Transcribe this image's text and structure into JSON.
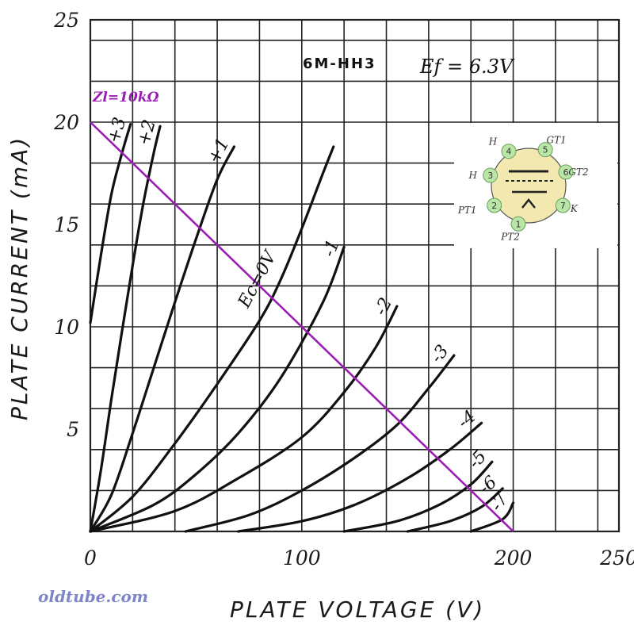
{
  "chart_data": {
    "type": "line",
    "title": "6M-HH3",
    "subtitle": "Ef = 6.3V",
    "xlabel": "PLATE VOLTAGE (V)",
    "ylabel": "PLATE CURRENT (mA)",
    "xlim": [
      0,
      250
    ],
    "ylim": [
      0,
      25
    ],
    "x_ticks": [
      "0",
      "100",
      "200",
      "250"
    ],
    "y_ticks": [
      "5",
      "10",
      "15",
      "20",
      "25"
    ],
    "grid": true,
    "series": [
      {
        "name": "+3",
        "points": [
          [
            0,
            10.2
          ],
          [
            5,
            13.5
          ],
          [
            10,
            16.5
          ],
          [
            15,
            18.5
          ],
          [
            19,
            19.9
          ]
        ]
      },
      {
        "name": "+2",
        "points": [
          [
            0,
            0
          ],
          [
            5,
            3.0
          ],
          [
            10,
            6.5
          ],
          [
            15,
            9.8
          ],
          [
            20,
            13.0
          ],
          [
            25,
            16.0
          ],
          [
            30,
            18.5
          ],
          [
            33,
            19.8
          ]
        ]
      },
      {
        "name": "+1",
        "points": [
          [
            0,
            0
          ],
          [
            10,
            1.8
          ],
          [
            20,
            4.8
          ],
          [
            30,
            8.0
          ],
          [
            40,
            11.2
          ],
          [
            50,
            14.3
          ],
          [
            60,
            17.2
          ],
          [
            68,
            18.8
          ]
        ]
      },
      {
        "name": "Ec=0V",
        "points": [
          [
            0,
            0
          ],
          [
            20,
            1.7
          ],
          [
            40,
            4.3
          ],
          [
            60,
            7.2
          ],
          [
            80,
            10.3
          ],
          [
            90,
            12.3
          ],
          [
            100,
            14.8
          ],
          [
            110,
            17.5
          ],
          [
            115,
            18.8
          ]
        ]
      },
      {
        "name": "-1",
        "points": [
          [
            0,
            0
          ],
          [
            30,
            1.3
          ],
          [
            50,
            2.8
          ],
          [
            70,
            4.8
          ],
          [
            90,
            7.5
          ],
          [
            110,
            11.2
          ],
          [
            120,
            13.9
          ]
        ]
      },
      {
        "name": "-2",
        "points": [
          [
            0,
            0
          ],
          [
            40,
            1.0
          ],
          [
            70,
            2.6
          ],
          [
            100,
            4.6
          ],
          [
            120,
            6.8
          ],
          [
            135,
            9.0
          ],
          [
            145,
            11.0
          ]
        ]
      },
      {
        "name": "-3",
        "points": [
          [
            45,
            0
          ],
          [
            75,
            0.8
          ],
          [
            100,
            2.0
          ],
          [
            125,
            3.6
          ],
          [
            145,
            5.2
          ],
          [
            160,
            7.0
          ],
          [
            172,
            8.6
          ]
        ]
      },
      {
        "name": "-4",
        "points": [
          [
            70,
            0
          ],
          [
            100,
            0.5
          ],
          [
            125,
            1.3
          ],
          [
            150,
            2.6
          ],
          [
            170,
            4.0
          ],
          [
            185,
            5.3
          ]
        ]
      },
      {
        "name": "-5",
        "points": [
          [
            120,
            0
          ],
          [
            145,
            0.5
          ],
          [
            165,
            1.3
          ],
          [
            180,
            2.3
          ],
          [
            190,
            3.4
          ]
        ]
      },
      {
        "name": "-6",
        "points": [
          [
            150,
            0
          ],
          [
            170,
            0.5
          ],
          [
            185,
            1.2
          ],
          [
            195,
            2.1
          ]
        ]
      },
      {
        "name": "-7",
        "points": [
          [
            180,
            0
          ],
          [
            195,
            0.6
          ],
          [
            200,
            1.4
          ]
        ]
      }
    ],
    "load_line": {
      "name": "Zl=10kΩ",
      "points": [
        [
          0,
          20
        ],
        [
          200,
          0
        ]
      ],
      "color": "#9b1eb4"
    }
  },
  "annotations": {
    "tube_title": "6M-HH3",
    "ef_label": "Ef = 6.3V",
    "load_label": "Zl=10kΩ",
    "watermark": "oldtube.com"
  },
  "pinout": {
    "pins": [
      {
        "num": "1",
        "name": "PT2"
      },
      {
        "num": "2",
        "name": "PT1"
      },
      {
        "num": "3",
        "name": "H"
      },
      {
        "num": "4",
        "name": "H"
      },
      {
        "num": "5",
        "name": "GT1"
      },
      {
        "num": "6",
        "name": "GT2"
      },
      {
        "num": "7",
        "name": "K"
      }
    ],
    "pin_fill": "#b9e6a7",
    "socket_fill": "#f2e8b0"
  },
  "colors": {
    "grid": "#222222",
    "curve": "#111111",
    "load_line": "#9b1eb4",
    "watermark": "#7f86c8"
  }
}
